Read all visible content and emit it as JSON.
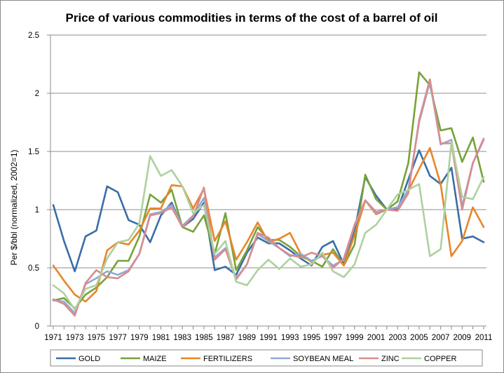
{
  "chart_data": {
    "type": "line",
    "title": "Price of various commodities in terms of the cost of a barrel of oil",
    "xlabel": "",
    "ylabel": "Per $/bbl (normalized, 2002=1)",
    "ylim": [
      0,
      2.5
    ],
    "yticks": [
      "0",
      "0.5",
      "1",
      "1.5",
      "2",
      "2.5"
    ],
    "ytick_values": [
      0,
      0.5,
      1,
      1.5,
      2,
      2.5
    ],
    "x": [
      1971,
      1972,
      1973,
      1974,
      1975,
      1976,
      1977,
      1978,
      1979,
      1980,
      1981,
      1982,
      1983,
      1984,
      1985,
      1986,
      1987,
      1988,
      1989,
      1990,
      1991,
      1992,
      1993,
      1994,
      1995,
      1996,
      1997,
      1998,
      1999,
      2000,
      2001,
      2002,
      2003,
      2004,
      2005,
      2006,
      2007,
      2008,
      2009,
      2010,
      2011
    ],
    "xtick_labels": [
      "1971",
      "1973",
      "1975",
      "1977",
      "1979",
      "1981",
      "1983",
      "1985",
      "1987",
      "1989",
      "1991",
      "1993",
      "1995",
      "1997",
      "1999",
      "2001",
      "2003",
      "2005",
      "2007",
      "2009",
      "2011"
    ],
    "grid": "horizontal",
    "legend_position": "bottom",
    "series": [
      {
        "name": "GOLD",
        "color": "#3a6ea5",
        "values": [
          1.04,
          0.73,
          0.47,
          0.77,
          0.82,
          1.2,
          1.15,
          0.91,
          0.87,
          0.72,
          0.95,
          1.06,
          0.85,
          0.92,
          1.06,
          0.48,
          0.51,
          0.44,
          0.63,
          0.76,
          0.71,
          0.71,
          0.65,
          0.58,
          0.52,
          0.68,
          0.73,
          0.53,
          0.82,
          1.28,
          1.12,
          1.0,
          1.0,
          1.26,
          1.51,
          1.29,
          1.22,
          1.36,
          0.75,
          0.77,
          0.72
        ]
      },
      {
        "name": "MAIZE",
        "color": "#77a23a",
        "values": [
          0.22,
          0.24,
          0.15,
          0.27,
          0.33,
          0.42,
          0.56,
          0.56,
          0.77,
          1.13,
          1.06,
          1.17,
          0.85,
          0.81,
          0.95,
          0.62,
          0.97,
          0.48,
          0.65,
          0.85,
          0.74,
          0.74,
          0.68,
          0.6,
          0.56,
          0.51,
          0.66,
          0.52,
          0.7,
          1.3,
          1.09,
          1.0,
          1.07,
          1.4,
          2.18,
          2.07,
          1.68,
          1.7,
          1.41,
          1.62,
          1.24
        ]
      },
      {
        "name": "FERTILIZERS",
        "color": "#e7862a",
        "values": [
          0.52,
          0.39,
          0.27,
          0.21,
          0.3,
          0.65,
          0.72,
          0.7,
          0.82,
          1.01,
          1.01,
          1.21,
          1.2,
          1.01,
          1.18,
          0.73,
          0.9,
          0.57,
          0.72,
          0.89,
          0.72,
          0.75,
          0.8,
          0.62,
          0.55,
          0.61,
          0.63,
          0.52,
          0.78,
          1.08,
          0.96,
          1.0,
          1.02,
          1.16,
          1.35,
          1.53,
          1.22,
          0.6,
          0.73,
          1.02,
          0.85
        ]
      },
      {
        "name": "SOYBEAN MEAL",
        "color": "#92a9d6",
        "values": [
          0.22,
          0.21,
          0.11,
          0.36,
          0.41,
          0.47,
          0.44,
          0.48,
          0.62,
          0.96,
          0.98,
          1.04,
          0.86,
          0.95,
          1.1,
          0.59,
          0.67,
          0.41,
          0.53,
          0.79,
          0.73,
          0.67,
          0.6,
          0.62,
          0.56,
          0.6,
          0.52,
          0.57,
          0.86,
          1.08,
          0.97,
          1.0,
          1.02,
          1.17,
          1.75,
          2.1,
          1.56,
          1.6,
          1.03,
          1.4,
          1.6
        ]
      },
      {
        "name": "ZINC",
        "color": "#d98c8d",
        "values": [
          0.23,
          0.19,
          0.09,
          0.37,
          0.48,
          0.42,
          0.41,
          0.47,
          0.62,
          0.95,
          0.97,
          1.02,
          0.85,
          0.94,
          1.19,
          0.57,
          0.66,
          0.4,
          0.53,
          0.8,
          0.76,
          0.67,
          0.61,
          0.59,
          0.63,
          0.6,
          0.5,
          0.58,
          0.87,
          1.08,
          0.98,
          1.0,
          0.99,
          1.14,
          1.77,
          2.12,
          1.57,
          1.57,
          1.0,
          1.4,
          1.61
        ]
      },
      {
        "name": "COPPER",
        "color": "#aed19e",
        "values": [
          0.35,
          0.28,
          0.14,
          0.32,
          0.35,
          0.58,
          0.72,
          0.74,
          0.88,
          1.46,
          1.29,
          1.34,
          1.2,
          0.97,
          1.04,
          0.62,
          0.73,
          0.38,
          0.35,
          0.48,
          0.57,
          0.49,
          0.58,
          0.51,
          0.53,
          0.63,
          0.47,
          0.42,
          0.53,
          0.8,
          0.87,
          1.0,
          1.13,
          1.17,
          1.22,
          0.6,
          0.66,
          1.58,
          1.11,
          1.09,
          1.28
        ]
      }
    ]
  }
}
